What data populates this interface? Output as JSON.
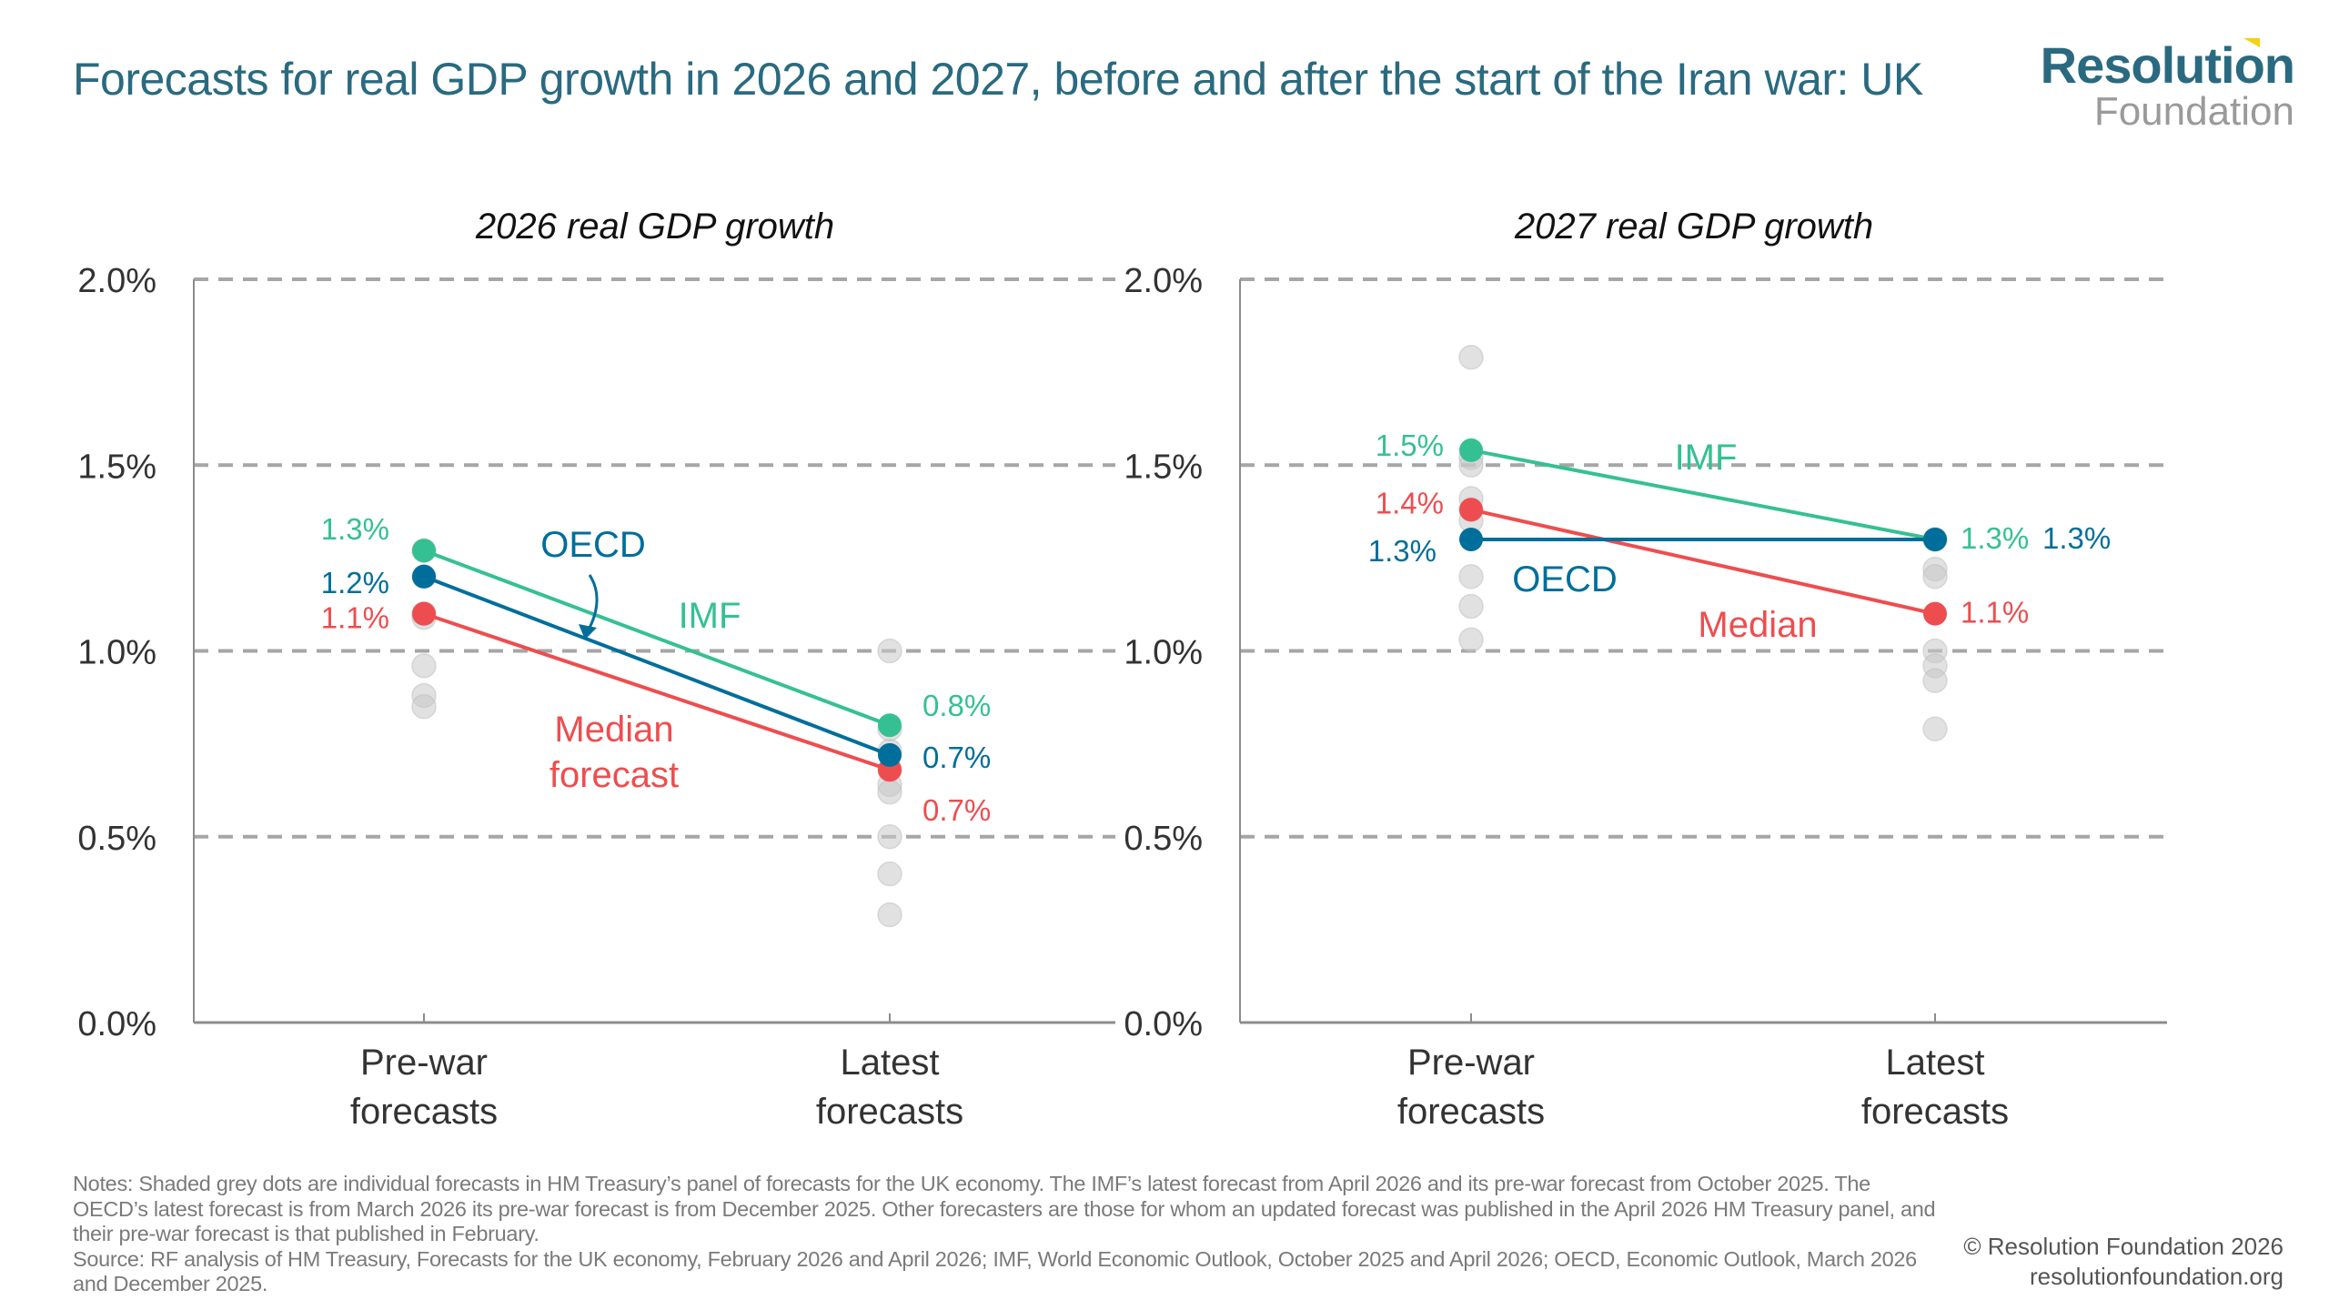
{
  "title": "Forecasts for real GDP growth in 2026 and 2027, before and after the start of the Iran war: UK",
  "logo": {
    "top": "Resolution",
    "bottom": "Foundation",
    "accent_color": "#f3d20f"
  },
  "colors": {
    "imf": "#35c093",
    "oecd": "#006e9a",
    "median": "#ee4d4f",
    "grey_dot": "#c8c8c8",
    "grid": "#a6a6a6",
    "axis_text": "#333333"
  },
  "chart_data": [
    {
      "type": "scatter",
      "title": "2026 real GDP growth",
      "categories": [
        "Pre-war\nforecasts",
        "Latest\nforecasts"
      ],
      "ylim": [
        0,
        2.0
      ],
      "yticks": [
        0.0,
        0.5,
        1.0,
        1.5,
        2.0
      ],
      "ytick_labels": [
        "0.0%",
        "0.5%",
        "1.0%",
        "1.5%",
        "2.0%"
      ],
      "grid": true,
      "y_axis_side": "left",
      "panel_forecasts": [
        [
          1.1,
          1.09,
          0.96,
          0.88,
          0.85,
          1.2,
          1.27
        ],
        [
          1.0,
          0.79,
          0.73,
          0.68,
          0.64,
          0.62,
          0.5,
          0.4,
          0.29
        ]
      ],
      "series": [
        {
          "name": "IMF",
          "key": "imf",
          "values": [
            1.27,
            0.8
          ],
          "labels": [
            "1.3%",
            "0.8%"
          ],
          "series_label": "IMF"
        },
        {
          "name": "OECD",
          "key": "oecd",
          "values": [
            1.2,
            0.72
          ],
          "labels": [
            "1.2%",
            "0.7%"
          ],
          "series_label": "OECD"
        },
        {
          "name": "Median forecast",
          "key": "median",
          "values": [
            1.1,
            0.68
          ],
          "labels": [
            "1.1%",
            "0.7%"
          ],
          "series_label": "Median\nforecast"
        }
      ]
    },
    {
      "type": "scatter",
      "title": "2027 real GDP growth",
      "categories": [
        "Pre-war\nforecasts",
        "Latest\nforecasts"
      ],
      "ylim": [
        0,
        2.0
      ],
      "yticks": [
        0.0,
        0.5,
        1.0,
        1.5,
        2.0
      ],
      "ytick_labels": [
        "0.0%",
        "0.5%",
        "1.0%",
        "1.5%",
        "2.0%"
      ],
      "grid": true,
      "y_axis_side": "left",
      "panel_forecasts": [
        [
          1.79,
          1.52,
          1.5,
          1.41,
          1.38,
          1.35,
          1.2,
          1.12,
          1.03
        ],
        [
          1.3,
          1.22,
          1.2,
          1.0,
          0.96,
          0.92,
          0.79
        ]
      ],
      "series": [
        {
          "name": "IMF",
          "key": "imf",
          "values": [
            1.54,
            1.3
          ],
          "labels": [
            "1.5%",
            "1.3%"
          ],
          "series_label": "IMF"
        },
        {
          "name": "OECD",
          "key": "oecd",
          "values": [
            1.3,
            1.3
          ],
          "labels": [
            "1.3%",
            "1.3%"
          ],
          "series_label": "OECD"
        },
        {
          "name": "Median",
          "key": "median",
          "values": [
            1.38,
            1.1
          ],
          "labels": [
            "1.4%",
            "1.1%"
          ],
          "series_label": "Median"
        }
      ]
    }
  ],
  "notes": [
    "Notes: Shaded grey dots are individual forecasts in HM Treasury’s panel of forecasts for the UK economy. The IMF’s latest forecast from April 2026 and its pre-war forecast from October 2025. The OECD’s latest forecast is from March 2026 its pre-war forecast is from December 2025. Other forecasters are those for whom an updated forecast was published in the April 2026 HM Treasury panel, and their pre-war forecast is that published in February.",
    "Source: RF analysis of HM Treasury, Forecasts for the UK economy, February 2026 and April 2026; IMF, World Economic Outlook, October 2025 and April 2026; OECD, Economic Outlook, March 2026 and December 2025."
  ],
  "copyright": {
    "line1": "© Resolution Foundation 2026",
    "line2": "resolutionfoundation.org"
  }
}
